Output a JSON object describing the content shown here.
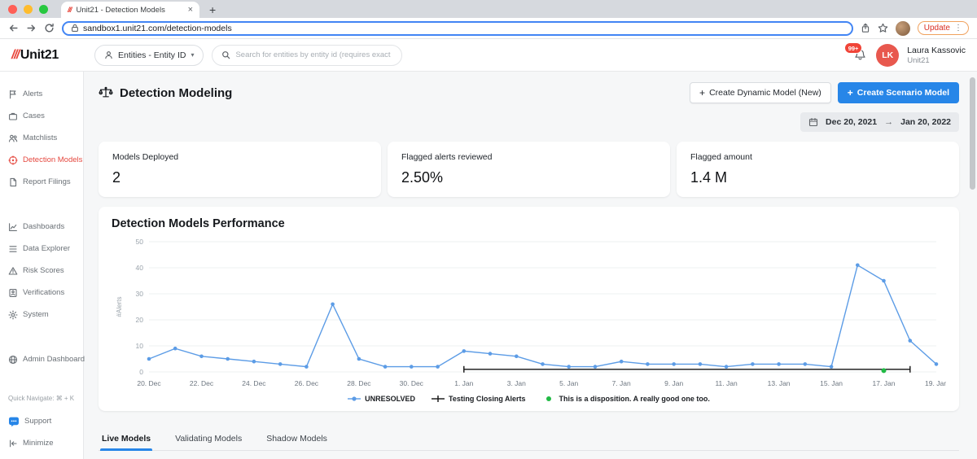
{
  "browser": {
    "tab_title": "Unit21 - Detection Models",
    "url": "sandbox1.unit21.com/detection-models",
    "update_label": "Update"
  },
  "icons": {
    "tab_close": "×",
    "new_tab": "+",
    "menu_dots": "⋮",
    "dropdown_chevron": "▾",
    "plus": "+",
    "arrow_right": "→",
    "logo_slashes": "///"
  },
  "header": {
    "logo_text": "Unit21",
    "entity_dropdown_label": "Entities - Entity ID",
    "search_placeholder": "Search for entities by entity id (requires exact match)",
    "notification_badge": "99+",
    "avatar_initials": "LK",
    "user_name": "Laura Kassovic",
    "user_org": "Unit21"
  },
  "sidebar": {
    "primary": [
      {
        "label": "Alerts",
        "active": false
      },
      {
        "label": "Cases",
        "active": false
      },
      {
        "label": "Matchlists",
        "active": false
      },
      {
        "label": "Detection Models",
        "active": true
      },
      {
        "label": "Report Filings",
        "active": false
      }
    ],
    "secondary": [
      {
        "label": "Dashboards"
      },
      {
        "label": "Data Explorer"
      },
      {
        "label": "Risk Scores"
      },
      {
        "label": "Verifications"
      },
      {
        "label": "System"
      }
    ],
    "tertiary": [
      {
        "label": "Admin Dashboard"
      }
    ],
    "quick_navigate": "Quick Navigate: ⌘ + K",
    "support": "Support",
    "minimize": "Minimize"
  },
  "page": {
    "title": "Detection Modeling",
    "buttons": {
      "create_dynamic": "Create Dynamic Model (New)",
      "create_scenario": "Create Scenario Model"
    },
    "date_range": {
      "start": "Dec 20, 2021",
      "end": "Jan 20, 2022"
    }
  },
  "stats": [
    {
      "label": "Models Deployed",
      "value": "2"
    },
    {
      "label": "Flagged alerts reviewed",
      "value": "2.50%"
    },
    {
      "label": "Flagged amount",
      "value": "1.4 M"
    }
  ],
  "chart_data": {
    "type": "line",
    "title": "Detection Models Performance",
    "ylabel": "#Alerts",
    "ylim": [
      0,
      50
    ],
    "yticks": [
      0,
      10,
      20,
      30,
      40,
      50
    ],
    "x_count": 31,
    "x_tick_step": 2,
    "x_tick_labels": [
      "20. Dec",
      "22. Dec",
      "24. Dec",
      "26. Dec",
      "28. Dec",
      "30. Dec",
      "1. Jan",
      "3. Jan",
      "5. Jan",
      "7. Jan",
      "9. Jan",
      "11. Jan",
      "13. Jan",
      "15. Jan",
      "17. Jan",
      "19. Jan"
    ],
    "grid": true,
    "legend_position": "bottom",
    "series": [
      {
        "name": "UNRESOLVED",
        "color": "#5c9ce6",
        "marker": "circle",
        "x_start": 0,
        "values": [
          5,
          9,
          6,
          5,
          4,
          3,
          2,
          26,
          5,
          2,
          2,
          2,
          8,
          7,
          6,
          3,
          2,
          2,
          4,
          3,
          3,
          3,
          2,
          3,
          3,
          3,
          2,
          41,
          35,
          12,
          3
        ]
      },
      {
        "name": "Testing Closing Alerts",
        "color": "#111111",
        "marker": "tick",
        "x_start": 12,
        "values": [
          1,
          1,
          1,
          1,
          1,
          1,
          1,
          1,
          1,
          1,
          1,
          1,
          1,
          1,
          1,
          1,
          1,
          1
        ]
      },
      {
        "name": "This is a disposition. A really good one too.",
        "color": "#21ba45",
        "marker": "dot",
        "x_start": 28,
        "values": [
          0.5
        ]
      }
    ]
  },
  "tabs": [
    {
      "label": "Live Models",
      "active": true
    },
    {
      "label": "Validating Models",
      "active": false
    },
    {
      "label": "Shadow Models",
      "active": false
    }
  ]
}
